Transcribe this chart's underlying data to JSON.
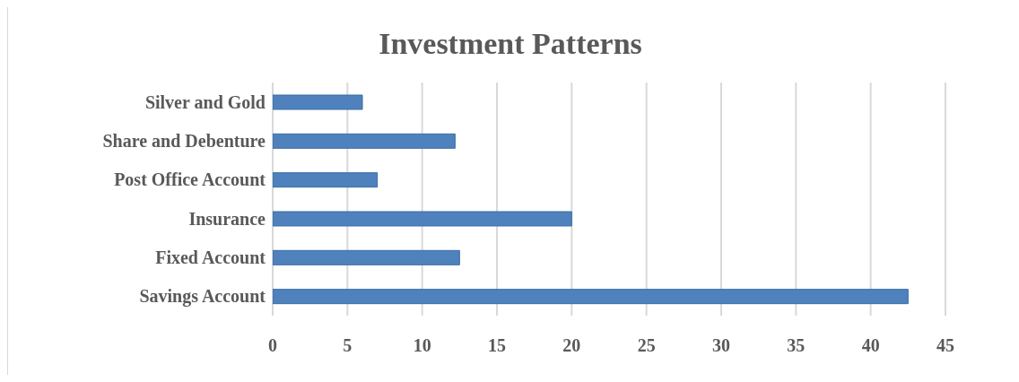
{
  "chart_data": {
    "type": "bar",
    "title": "Investment Patterns",
    "orientation": "horizontal",
    "categories": [
      "Silver and Gold",
      "Share and Debenture",
      "Post Office Account",
      "Insurance",
      "Fixed Account",
      "Savings Account"
    ],
    "values": [
      6,
      12.2,
      7,
      20,
      12.5,
      42.5
    ],
    "color": "#4f81bd",
    "xlim": [
      0,
      45
    ],
    "xticks": [
      0,
      5,
      10,
      15,
      20,
      25,
      30,
      35,
      40,
      45
    ],
    "grid": "x"
  }
}
